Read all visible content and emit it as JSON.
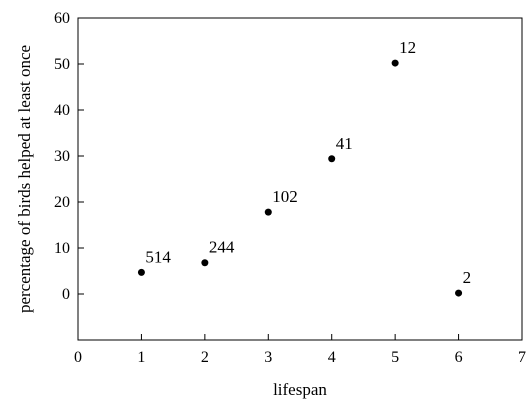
{
  "chart_data": {
    "type": "scatter",
    "title": "",
    "xlabel": "lifespan",
    "ylabel": "percentage of birds helped at least once",
    "xlim": [
      0,
      7
    ],
    "ylim": [
      -10,
      60
    ],
    "xticks": [
      0,
      1,
      2,
      3,
      4,
      5,
      6,
      7
    ],
    "yticks": [
      0,
      10,
      20,
      30,
      40,
      50,
      60
    ],
    "grid": false,
    "legend": "none",
    "points": [
      {
        "x": 1,
        "y": 4.7,
        "label": "514"
      },
      {
        "x": 2,
        "y": 6.8,
        "label": "244"
      },
      {
        "x": 3,
        "y": 17.8,
        "label": "102"
      },
      {
        "x": 4,
        "y": 29.4,
        "label": "41"
      },
      {
        "x": 5,
        "y": 50.2,
        "label": "12"
      },
      {
        "x": 6,
        "y": 0.2,
        "label": "2"
      }
    ],
    "colors": {
      "marker": "#000000",
      "axes": "#000000"
    }
  }
}
